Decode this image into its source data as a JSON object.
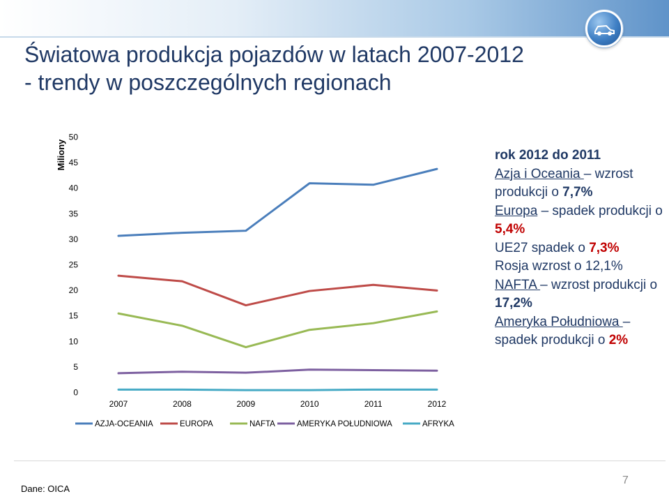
{
  "slide": {
    "title_line1": "Światowa produkcja pojazdów w latach 2007-2012",
    "title_line2": "- trendy w poszczególnych regionach",
    "source": "Dane:  OICA",
    "page_number": "7",
    "logo_icon": "car-logo-icon"
  },
  "side_text": {
    "heading": "rok 2012 do 2011",
    "azja_name": "Azja i Oceania ",
    "azja_rest": " wzrost produkcji o ",
    "azja_pct": "7,7%",
    "europa_name": "Europa",
    "europa_rest": " spadek produkcji o ",
    "europa_pct": "5,4%",
    "ue27_text": "UE27 spadek o ",
    "ue27_pct": "7,3%",
    "rosja_text": "Rosja wzrost o 12,1%",
    "nafta_name": "NAFTA ",
    "nafta_rest": " wzrost produkcji o ",
    "nafta_pct": "17,2%",
    "am_name": "Ameryka Południowa ",
    "am_rest": " spadek produkcji o ",
    "am_pct": "2%",
    "dash": "–"
  },
  "chart_data": {
    "type": "line",
    "ylabel": "Miliony",
    "ylim": [
      0,
      50
    ],
    "yticks": [
      0,
      5,
      10,
      15,
      20,
      25,
      30,
      35,
      40,
      45,
      50
    ],
    "grid": false,
    "legend_position": "bottom",
    "categories": [
      "2007",
      "2008",
      "2009",
      "2010",
      "2011",
      "2012"
    ],
    "series": [
      {
        "name": "AZJA-OCEANIA",
        "color": "#4a7ebb",
        "values": [
          30.6,
          31.2,
          31.6,
          40.9,
          40.6,
          43.7
        ]
      },
      {
        "name": "EUROPA",
        "color": "#be4b48",
        "values": [
          22.8,
          21.7,
          17.0,
          19.8,
          21.0,
          19.9
        ]
      },
      {
        "name": "NAFTA",
        "color": "#98b954",
        "values": [
          15.4,
          13.0,
          8.8,
          12.2,
          13.5,
          15.8
        ]
      },
      {
        "name": "AMERYKA POŁUDNIOWA",
        "color": "#7d60a0",
        "values": [
          3.7,
          4.0,
          3.8,
          4.4,
          4.3,
          4.2
        ]
      },
      {
        "name": "AFRYKA",
        "color": "#46aac5",
        "values": [
          0.5,
          0.5,
          0.4,
          0.4,
          0.5,
          0.5
        ]
      }
    ]
  }
}
